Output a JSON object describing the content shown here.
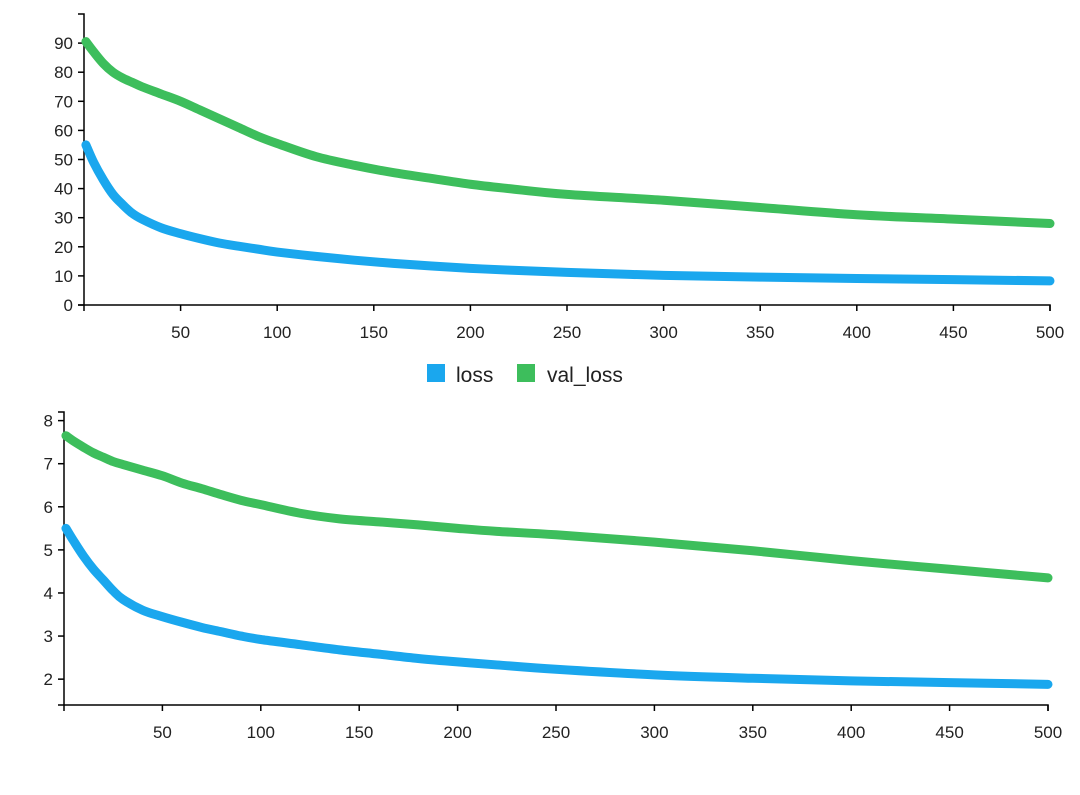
{
  "colors": {
    "loss": "#1aa7ee",
    "val_loss": "#3dbe5c"
  },
  "legend": {
    "items": [
      {
        "key": "loss",
        "label": "loss"
      },
      {
        "key": "val_loss",
        "label": "val_loss"
      }
    ],
    "placement": "between-charts-center"
  },
  "chart_data": [
    {
      "type": "line",
      "title": "",
      "xlabel": "",
      "ylabel": "",
      "xlim": [
        0,
        500
      ],
      "ylim": [
        0,
        100
      ],
      "xticks": [
        "50",
        "100",
        "150",
        "200",
        "250",
        "300",
        "350",
        "400",
        "450",
        "500"
      ],
      "yticks": [
        "0",
        "10",
        "20",
        "30",
        "40",
        "50",
        "60",
        "70",
        "80",
        "90"
      ],
      "grid": false,
      "x": [
        1,
        5,
        10,
        15,
        20,
        25,
        30,
        40,
        50,
        60,
        70,
        80,
        90,
        100,
        120,
        140,
        160,
        180,
        200,
        220,
        250,
        300,
        350,
        400,
        450,
        500
      ],
      "series": [
        {
          "name": "loss",
          "values": [
            55,
            49,
            43,
            38,
            34.5,
            31.5,
            29.5,
            26.5,
            24.5,
            22.8,
            21.3,
            20.2,
            19.2,
            18.2,
            16.7,
            15.4,
            14.3,
            13.4,
            12.6,
            12,
            11.2,
            10.2,
            9.6,
            9.1,
            8.7,
            8.3
          ]
        },
        {
          "name": "val_loss",
          "values": [
            90.5,
            87,
            83,
            80,
            78,
            76.5,
            75,
            72.5,
            70,
            67,
            64,
            61,
            58,
            55.5,
            51,
            48,
            45.5,
            43.5,
            41.5,
            40,
            38,
            36,
            33.5,
            31,
            29.5,
            28
          ]
        }
      ]
    },
    {
      "type": "line",
      "title": "",
      "xlabel": "",
      "ylabel": "",
      "xlim": [
        0,
        500
      ],
      "ylim": [
        1.4,
        8.2
      ],
      "xticks": [
        "50",
        "100",
        "150",
        "200",
        "250",
        "300",
        "350",
        "400",
        "450",
        "500"
      ],
      "yticks": [
        "2",
        "3",
        "4",
        "5",
        "6",
        "7",
        "8"
      ],
      "grid": false,
      "x": [
        1,
        5,
        10,
        15,
        20,
        25,
        30,
        40,
        50,
        60,
        70,
        80,
        90,
        100,
        120,
        140,
        160,
        180,
        200,
        220,
        250,
        300,
        350,
        400,
        450,
        500
      ],
      "series": [
        {
          "name": "loss",
          "values": [
            5.5,
            5.2,
            4.85,
            4.55,
            4.3,
            4.05,
            3.85,
            3.6,
            3.45,
            3.32,
            3.2,
            3.1,
            3.0,
            2.92,
            2.8,
            2.68,
            2.58,
            2.48,
            2.4,
            2.33,
            2.23,
            2.1,
            2.02,
            1.96,
            1.92,
            1.88
          ]
        },
        {
          "name": "val_loss",
          "values": [
            7.65,
            7.52,
            7.38,
            7.25,
            7.15,
            7.05,
            6.98,
            6.85,
            6.72,
            6.55,
            6.42,
            6.28,
            6.15,
            6.05,
            5.85,
            5.72,
            5.65,
            5.58,
            5.5,
            5.43,
            5.35,
            5.18,
            4.98,
            4.75,
            4.55,
            4.35
          ]
        }
      ]
    }
  ]
}
